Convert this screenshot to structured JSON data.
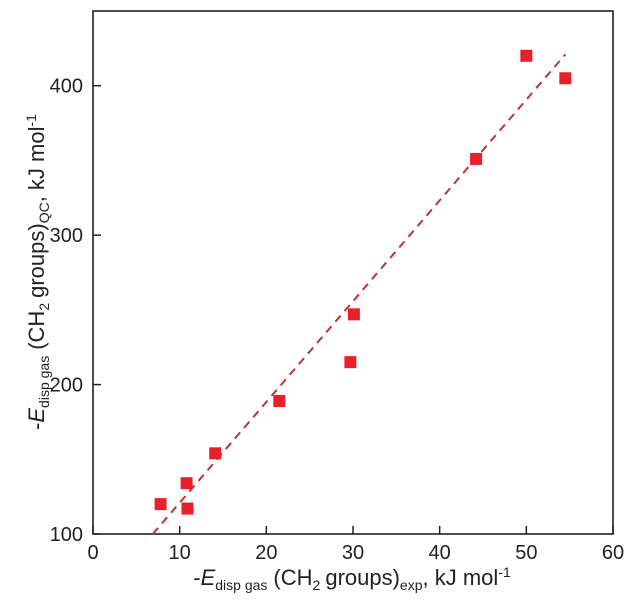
{
  "chart_data": {
    "type": "scatter",
    "xlim": [
      0,
      60
    ],
    "ylim": [
      100,
      450
    ],
    "x_ticks": [
      "0",
      "10",
      "20",
      "30",
      "40",
      "50",
      "60"
    ],
    "y_ticks": [
      "100",
      "200",
      "300",
      "400"
    ],
    "x_tick_values": [
      0,
      10,
      20,
      30,
      40,
      50,
      60
    ],
    "y_tick_values": [
      100,
      200,
      300,
      400
    ],
    "xlabel": {
      "prefix": "-",
      "symbol": "E",
      "symbol_sub": "disp gas",
      "middle": "(CH",
      "middle_sub": "2",
      "end": "groups)",
      "end_sub": "exp",
      "unit": ", kJ mol",
      "unit_sup": "-1"
    },
    "ylabel": {
      "prefix": "-",
      "symbol": "E",
      "symbol_sub": "disp gas",
      "middle": "(CH",
      "middle_sub": "2",
      "end": "groups)",
      "end_sub": "QC",
      "unit": ", kJ mol",
      "unit_sup": "-1"
    },
    "points": [
      {
        "x": 7.8,
        "y": 120
      },
      {
        "x": 10.8,
        "y": 134
      },
      {
        "x": 10.9,
        "y": 117
      },
      {
        "x": 14.1,
        "y": 154
      },
      {
        "x": 21.5,
        "y": 189
      },
      {
        "x": 29.7,
        "y": 215
      },
      {
        "x": 30.1,
        "y": 247
      },
      {
        "x": 44.2,
        "y": 351
      },
      {
        "x": 50.0,
        "y": 420
      },
      {
        "x": 54.5,
        "y": 405
      }
    ],
    "trendline": {
      "x": [
        6.9,
        54.5
      ],
      "y": [
        100,
        421
      ]
    },
    "marker_color": "#e8202a",
    "trendline_color": "#c43030",
    "grid": false
  }
}
